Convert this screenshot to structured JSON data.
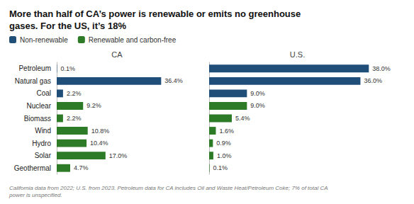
{
  "chart_data": [
    {
      "type": "bar",
      "orientation": "horizontal",
      "title": "More than half of CA’s power is renewable or emits no greenhouse\ngases. For the US, it’s 18%",
      "annotations": [
        "California data from 2022; U.S. from 2023. Petroleum data for CA includes Oil and Waste Heat/Petroleum Coke; 7% of total CA\npower is unspecified."
      ],
      "legend": "upper left",
      "xlabel": "CA",
      "categories": [
        "Petroleum",
        "Natural gas",
        "Coal",
        "Nuclear",
        "Biomass",
        "Wind",
        "Hydro",
        "Solar",
        "Geothermal"
      ],
      "series": [
        {
          "name": "Non-renewable",
          "color": "#1f4e79",
          "values": [
            0.1,
            36.4,
            2.2,
            null,
            null,
            null,
            null,
            null,
            null
          ],
          "value_labels": [
            "0.1%",
            "36.4%",
            "2.2%",
            null,
            null,
            null,
            null,
            null,
            null
          ]
        },
        {
          "name": "Renewable and carbon-free",
          "color": "#2d7a27",
          "values": [
            null,
            null,
            null,
            9.2,
            2.2,
            10.8,
            10.4,
            17.0,
            4.7
          ],
          "value_labels": [
            null,
            null,
            null,
            "9.2%",
            "2.2%",
            "10.8%",
            "10.4%",
            "17.0%",
            "4.7%"
          ]
        }
      ],
      "xlim": [
        0,
        42
      ],
      "grid": false,
      "data_labels": true,
      "tick_labels": "y"
    },
    {
      "type": "bar",
      "orientation": "horizontal",
      "xlabel": "U.S.",
      "categories": [
        "Petroleum",
        "Natural gas",
        "Coal",
        "Nuclear",
        "Biomass",
        "Wind",
        "Hydro",
        "Solar",
        "Geothermal"
      ],
      "series": [
        {
          "name": "Non-renewable",
          "color": "#1f4e79",
          "values": [
            38.0,
            36.0,
            9.0,
            null,
            null,
            null,
            null,
            null,
            null
          ],
          "value_labels": [
            "38.0%",
            "36.0%",
            "9.0%",
            null,
            null,
            null,
            null,
            null,
            null
          ]
        },
        {
          "name": "Renewable and carbon-free",
          "color": "#2d7a27",
          "values": [
            null,
            null,
            null,
            9.0,
            5.4,
            1.6,
            0.9,
            1.0,
            0.1
          ],
          "value_labels": [
            null,
            null,
            null,
            "9.0%",
            "5.4%",
            "1.6%",
            "0.9%",
            "1.0%",
            "0.1%"
          ]
        }
      ],
      "xlim": [
        0,
        42
      ],
      "grid": false,
      "data_labels": true,
      "tick_labels": false
    }
  ]
}
